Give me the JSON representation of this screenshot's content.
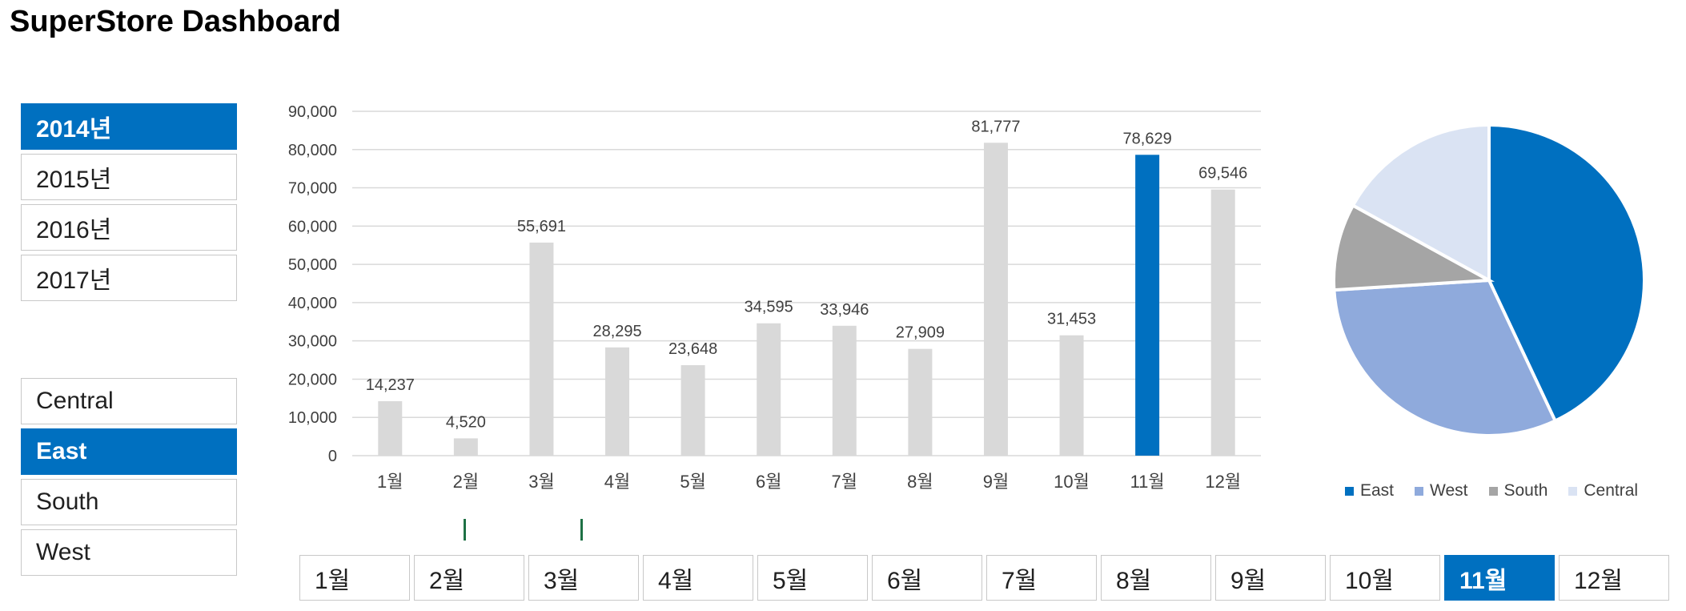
{
  "title": "SuperStore Dashboard",
  "year_slicer": {
    "items": [
      {
        "label": "2014년",
        "selected": true
      },
      {
        "label": "2015년",
        "selected": false
      },
      {
        "label": "2016년",
        "selected": false
      },
      {
        "label": "2017년",
        "selected": false
      }
    ]
  },
  "region_slicer": {
    "items": [
      {
        "label": "Central",
        "selected": false
      },
      {
        "label": "East",
        "selected": true
      },
      {
        "label": "South",
        "selected": false
      },
      {
        "label": "West",
        "selected": false
      }
    ]
  },
  "month_slicer": {
    "items": [
      {
        "label": "1월",
        "selected": false
      },
      {
        "label": "2월",
        "selected": false
      },
      {
        "label": "3월",
        "selected": false
      },
      {
        "label": "4월",
        "selected": false
      },
      {
        "label": "5월",
        "selected": false
      },
      {
        "label": "6월",
        "selected": false
      },
      {
        "label": "7월",
        "selected": false
      },
      {
        "label": "8월",
        "selected": false
      },
      {
        "label": "9월",
        "selected": false
      },
      {
        "label": "10월",
        "selected": false
      },
      {
        "label": "11월",
        "selected": true
      },
      {
        "label": "12월",
        "selected": false
      }
    ]
  },
  "colors": {
    "accent": "#0070c0",
    "bar_default": "#d9d9d9",
    "gridline": "#d9d9d9"
  },
  "chart_data": [
    {
      "type": "bar",
      "categories": [
        "1월",
        "2월",
        "3월",
        "4월",
        "5월",
        "6월",
        "7월",
        "8월",
        "9월",
        "10월",
        "11월",
        "12월"
      ],
      "values": [
        14237,
        4520,
        55691,
        28295,
        23648,
        34595,
        33946,
        27909,
        81777,
        31453,
        78629,
        69546
      ],
      "value_labels": [
        "14,237",
        "4,520",
        "55,691",
        "28,295",
        "23,648",
        "34,595",
        "33,946",
        "27,909",
        "81,777",
        "31,453",
        "78,629",
        "69,546"
      ],
      "highlight_index": 10,
      "yticks": [
        "0",
        "10,000",
        "20,000",
        "30,000",
        "40,000",
        "50,000",
        "60,000",
        "70,000",
        "80,000",
        "90,000"
      ],
      "ylim": [
        0,
        90000
      ],
      "grid": true,
      "title": "",
      "xlabel": "",
      "ylabel": ""
    },
    {
      "type": "pie",
      "labels": [
        "East",
        "West",
        "South",
        "Central"
      ],
      "values": [
        43,
        31,
        9,
        17
      ],
      "colors": [
        "#0070c0",
        "#8faadc",
        "#a5a5a5",
        "#dae3f3"
      ],
      "legend": "bottom"
    }
  ]
}
